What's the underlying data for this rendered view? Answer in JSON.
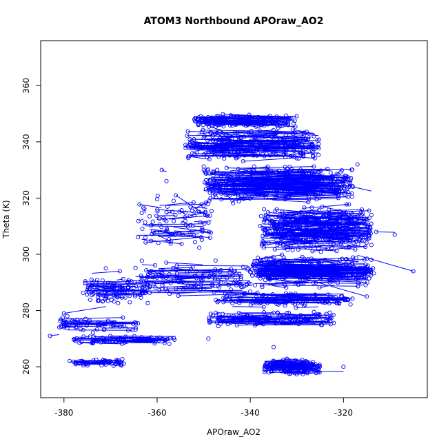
{
  "chart_data": {
    "type": "scatter",
    "title": "ATOM3 Northbound APOraw_AO2",
    "xlabel": "APOraw_AO2",
    "ylabel": "Theta (K)",
    "xlim": [
      -385,
      -302
    ],
    "ylim": [
      249,
      376
    ],
    "xticks": [
      -380,
      -360,
      -340,
      -320
    ],
    "yticks": [
      260,
      280,
      300,
      320,
      340,
      360
    ],
    "xtick_labels": [
      "-380",
      "-360",
      "-340",
      "-320"
    ],
    "ytick_labels": [
      "260",
      "280",
      "300",
      "320",
      "340",
      "360"
    ],
    "grid": false,
    "legend": "none",
    "series": [
      {
        "marker": "open-circle",
        "connected": true,
        "color": "#0000ff",
        "clusters": [
          {
            "x_range": [
              -337,
              -325
            ],
            "y_range": [
              257,
              263
            ],
            "count": 180
          },
          {
            "x_range": [
              -379,
              -367
            ],
            "y_range": [
              260,
              263
            ],
            "count": 60
          },
          {
            "x_range": [
              -378,
              -356
            ],
            "y_range": [
              268,
              271
            ],
            "count": 80
          },
          {
            "x_range": [
              -381,
              -364
            ],
            "y_range": [
              271,
              280
            ],
            "count": 60
          },
          {
            "x_range": [
              -376,
              -362
            ],
            "y_range": [
              282,
              292
            ],
            "count": 110
          },
          {
            "x_range": [
              -365,
              -340
            ],
            "y_range": [
              285,
              298
            ],
            "count": 120
          },
          {
            "x_range": [
              -349,
              -322
            ],
            "y_range": [
              274,
              280
            ],
            "count": 140
          },
          {
            "x_range": [
              -348,
              -318
            ],
            "y_range": [
              281,
              287
            ],
            "count": 120
          },
          {
            "x_range": [
              -340,
              -313
            ],
            "y_range": [
              288,
              300
            ],
            "count": 320
          },
          {
            "x_range": [
              -338,
              -314
            ],
            "y_range": [
              300,
              318
            ],
            "count": 400
          },
          {
            "x_range": [
              -350,
              -318
            ],
            "y_range": [
              318,
              332
            ],
            "count": 380
          },
          {
            "x_range": [
              -354,
              -325
            ],
            "y_range": [
              333,
              345
            ],
            "count": 300
          },
          {
            "x_range": [
              -352,
              -330
            ],
            "y_range": [
              345,
              350
            ],
            "count": 160
          },
          {
            "x_range": [
              -365,
              -348
            ],
            "y_range": [
              300,
              322
            ],
            "count": 90
          }
        ],
        "outliers": [
          {
            "x": -383,
            "y": 271
          },
          {
            "x": -381,
            "y": 274
          },
          {
            "x": -380,
            "y": 279
          },
          {
            "x": -371,
            "y": 295
          },
          {
            "x": -368,
            "y": 294
          },
          {
            "x": -374,
            "y": 289
          },
          {
            "x": -359,
            "y": 330
          },
          {
            "x": -358,
            "y": 326
          },
          {
            "x": -356,
            "y": 321
          },
          {
            "x": -349,
            "y": 270
          },
          {
            "x": -345,
            "y": 285
          },
          {
            "x": -343,
            "y": 289
          },
          {
            "x": -336,
            "y": 258
          },
          {
            "x": -320,
            "y": 260
          },
          {
            "x": -318,
            "y": 324
          },
          {
            "x": -314,
            "y": 314
          },
          {
            "x": -313,
            "y": 308
          },
          {
            "x": -309,
            "y": 307
          },
          {
            "x": -305,
            "y": 294
          },
          {
            "x": -317,
            "y": 332
          },
          {
            "x": -315,
            "y": 285
          },
          {
            "x": -334,
            "y": 345
          },
          {
            "x": -352,
            "y": 348
          },
          {
            "x": -335,
            "y": 267
          }
        ]
      }
    ]
  }
}
